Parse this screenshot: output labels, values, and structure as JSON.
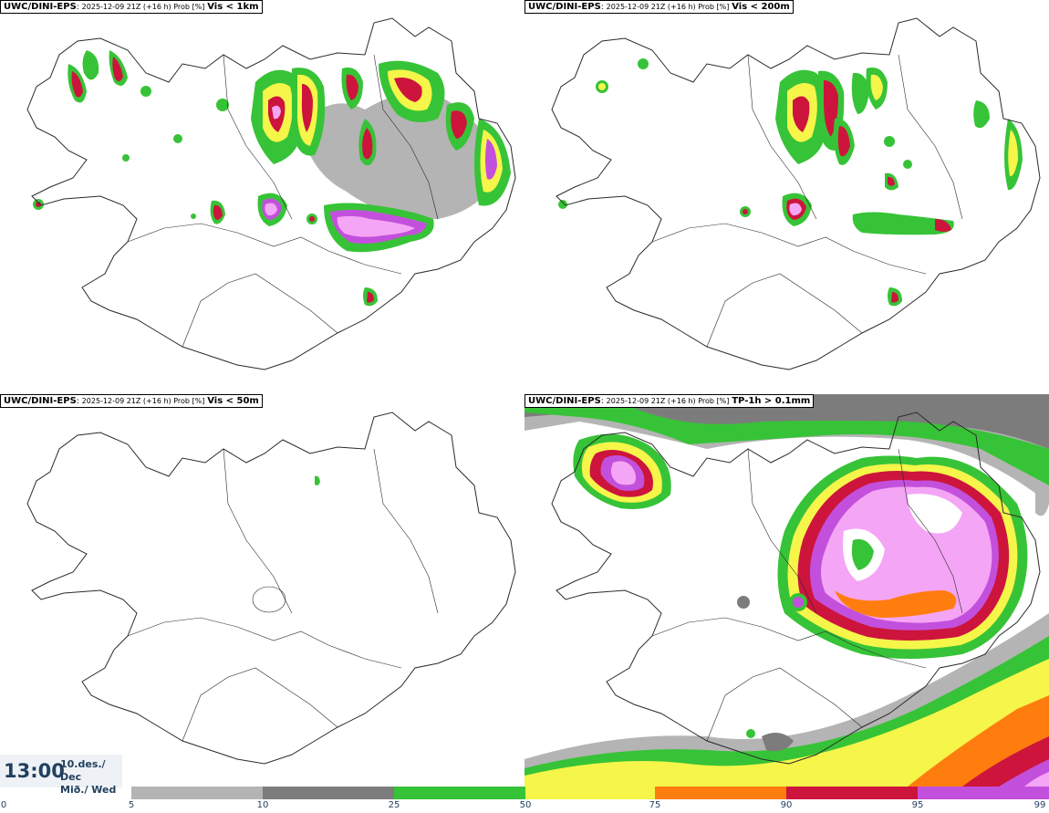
{
  "panels": [
    {
      "model": "UWC/DINI-EPS",
      "run": "2025-12-09 21Z (+16 h) Prob [%]",
      "variable": "Vis < 1km"
    },
    {
      "model": "UWC/DINI-EPS",
      "run": "2025-12-09 21Z (+16 h) Prob [%]",
      "variable": "Vis < 200m"
    },
    {
      "model": "UWC/DINI-EPS",
      "run": "2025-12-09 21Z (+16 h) Prob [%]",
      "variable": "Vis < 50m"
    },
    {
      "model": "UWC/DINI-EPS",
      "run": "2025-12-09 21Z (+16 h) Prob [%]",
      "variable": "TP-1h > 0.1mm"
    }
  ],
  "valid_time": {
    "time": "13:00",
    "date": "10.des./ Dec",
    "weekday": "Mið./ Wed"
  },
  "legend": {
    "ticks": [
      "0",
      "5",
      "10",
      "25",
      "50",
      "75",
      "90",
      "95",
      "99"
    ],
    "colors": {
      "p5": "#b4b4b4",
      "p10": "#7c7c7c",
      "p25": "#37c337",
      "p50": "#f5f54a",
      "p75": "#ff7d0f",
      "p90": "#cd143c",
      "p95": "#c350dc",
      "p99": "#f5a5f5"
    }
  }
}
